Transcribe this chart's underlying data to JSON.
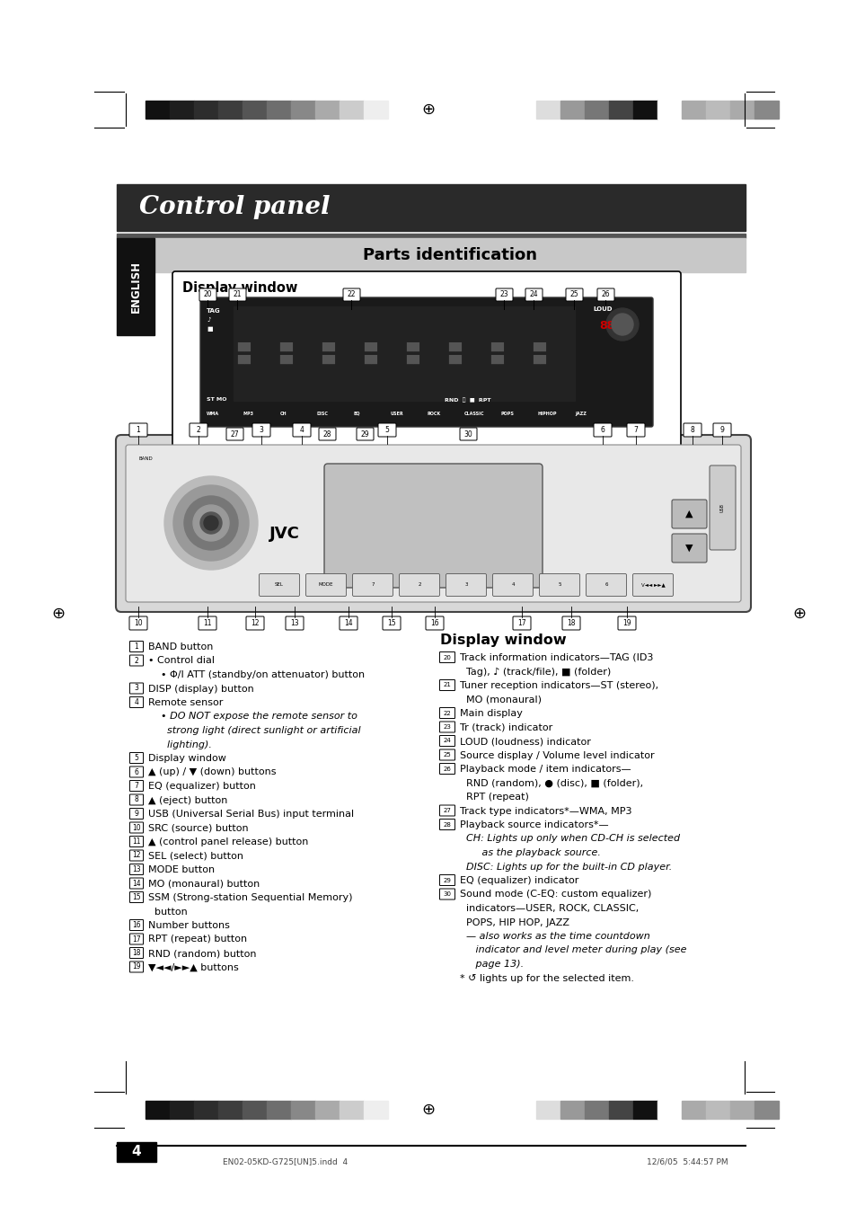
{
  "page_bg": "#ffffff",
  "title_bar_bg": "#2a2a2a",
  "title_text": "Control panel",
  "title_text_color": "#ffffff",
  "parts_bar_bg": "#c8c8c8",
  "parts_text": "Parts identification",
  "parts_text_color": "#000000",
  "english_bar_bg": "#111111",
  "english_text": "ENGLISH",
  "english_text_color": "#ffffff",
  "display_window_title": "Display window",
  "display_window_title2": "Display window",
  "bar_colors_left": [
    "#111111",
    "#1e1e1e",
    "#2d2d2d",
    "#3d3d3d",
    "#555555",
    "#6e6e6e",
    "#888888",
    "#aaaaaa",
    "#cccccc",
    "#eeeeee"
  ],
  "bar_colors_right": [
    "#dddddd",
    "#999999",
    "#777777",
    "#444444",
    "#111111",
    "#ffffff",
    "#aaaaaa",
    "#bbbbbb",
    "#aaaaaa",
    "#888888"
  ],
  "left_items": [
    [
      "1",
      "BAND button"
    ],
    [
      "2",
      "• Control dial"
    ],
    [
      "",
      "    • Φ/I ATT (standby/on attenuator) button"
    ],
    [
      "3",
      "DISP (display) button"
    ],
    [
      "4",
      "Remote sensor"
    ],
    [
      "",
      "    • DO NOT expose the remote sensor to",
      "italic"
    ],
    [
      "",
      "      strong light (direct sunlight or artificial",
      "italic"
    ],
    [
      "",
      "      lighting).",
      "italic"
    ],
    [
      "5",
      "Display window"
    ],
    [
      "6",
      "▲ (up) / ▼ (down) buttons"
    ],
    [
      "7",
      "EQ (equalizer) button"
    ],
    [
      "8",
      "▲ (eject) button"
    ],
    [
      "9",
      "USB (Universal Serial Bus) input terminal"
    ],
    [
      "10",
      "SRC (source) button"
    ],
    [
      "11",
      "▲ (control panel release) button"
    ],
    [
      "12",
      "SEL (select) button"
    ],
    [
      "13",
      "MODE button"
    ],
    [
      "14",
      "MO (monaural) button"
    ],
    [
      "15",
      "SSM (Strong-station Sequential Memory)"
    ],
    [
      "",
      "  button"
    ],
    [
      "16",
      "Number buttons"
    ],
    [
      "17",
      "RPT (repeat) button"
    ],
    [
      "18",
      "RND (random) button"
    ],
    [
      "19",
      "▼◄◄/►►▲ buttons"
    ]
  ],
  "right_items": [
    [
      "20",
      "Track information indicators—TAG (ID3"
    ],
    [
      "",
      "  Tag), ♪ (track/file), ■ (folder)"
    ],
    [
      "21",
      "Tuner reception indicators—ST (stereo),"
    ],
    [
      "",
      "  MO (monaural)"
    ],
    [
      "22",
      "Main display"
    ],
    [
      "23",
      "Tr (track) indicator"
    ],
    [
      "24",
      "LOUD (loudness) indicator"
    ],
    [
      "25",
      "Source display / Volume level indicator"
    ],
    [
      "26",
      "Playback mode / item indicators—"
    ],
    [
      "",
      "  RND (random), ● (disc), ■ (folder),"
    ],
    [
      "",
      "  RPT (repeat)"
    ],
    [
      "27",
      "Track type indicators*—WMA, MP3"
    ],
    [
      "28",
      "Playback source indicators*—"
    ],
    [
      "",
      "  CH: Lights up only when CD-CH is selected",
      "italic_partial"
    ],
    [
      "",
      "       as the playback source.",
      "italic"
    ],
    [
      "",
      "  DISC: Lights up for the built-in CD player.",
      "italic_partial"
    ],
    [
      "29",
      "EQ (equalizer) indicator"
    ],
    [
      "30",
      "Sound mode (C-EQ: custom equalizer)"
    ],
    [
      "",
      "  indicators—USER, ROCK, CLASSIC,"
    ],
    [
      "",
      "  POPS, HIP HOP, JAZZ"
    ],
    [
      "",
      "  — also works as the time countdown",
      "italic_partial"
    ],
    [
      "",
      "     indicator and level meter during play (see",
      "italic"
    ],
    [
      "",
      "     page 13).",
      "italic"
    ],
    [
      "",
      "* ↺ lights up for the selected item."
    ]
  ],
  "footer_text": "4",
  "bottom_text_left": "EN02-05KD-G725[UN]5.indd  4",
  "bottom_text_right": "12/6/05  5:44:57 PM"
}
